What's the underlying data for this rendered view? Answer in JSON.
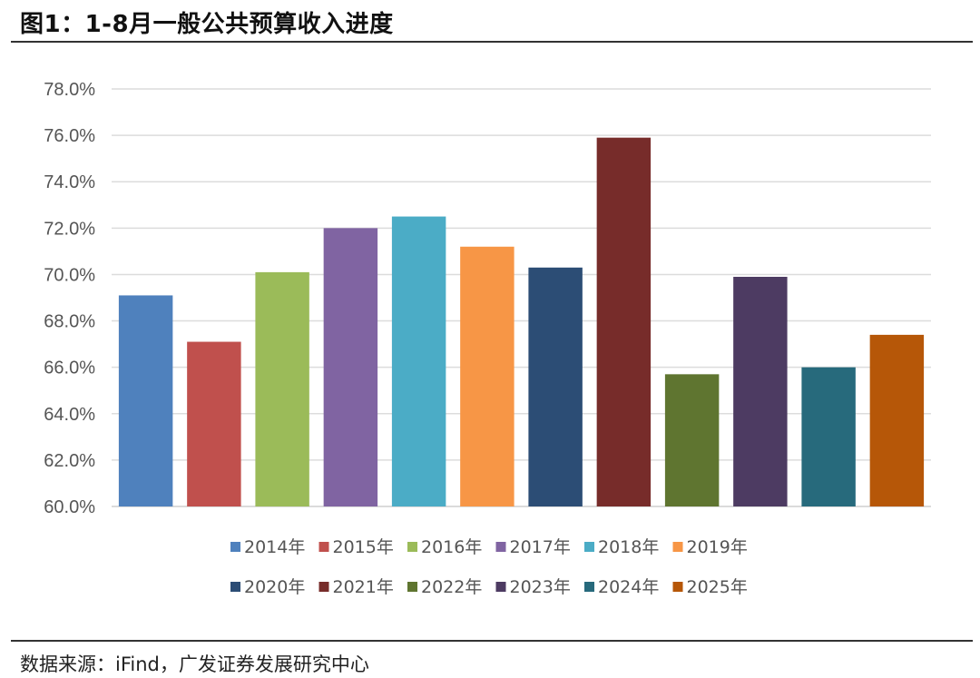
{
  "title": "图1：1-8月一般公共预算收入进度",
  "source": "数据来源：iFind，广发证券发展研究中心",
  "chart_data": {
    "type": "bar",
    "categories": [
      "2014年",
      "2015年",
      "2016年",
      "2017年",
      "2018年",
      "2019年",
      "2020年",
      "2021年",
      "2022年",
      "2023年",
      "2024年",
      "2025年"
    ],
    "values": [
      69.1,
      67.1,
      70.1,
      72.0,
      72.5,
      71.2,
      70.3,
      75.9,
      65.7,
      69.9,
      66.0,
      67.4
    ],
    "colors": [
      "#4F81BD",
      "#C0504D",
      "#9BBB59",
      "#8064A2",
      "#4BACC6",
      "#F79646",
      "#2C4D75",
      "#772C2A",
      "#5F7530",
      "#4D3B62",
      "#276A7C",
      "#B65708"
    ],
    "ylim": [
      60,
      78
    ],
    "yticks": [
      "60.0%",
      "62.0%",
      "64.0%",
      "66.0%",
      "68.0%",
      "70.0%",
      "72.0%",
      "74.0%",
      "76.0%",
      "78.0%"
    ],
    "ytick_values": [
      60,
      62,
      64,
      66,
      68,
      70,
      72,
      74,
      76,
      78
    ],
    "grid": true,
    "legend_position": "bottom"
  }
}
